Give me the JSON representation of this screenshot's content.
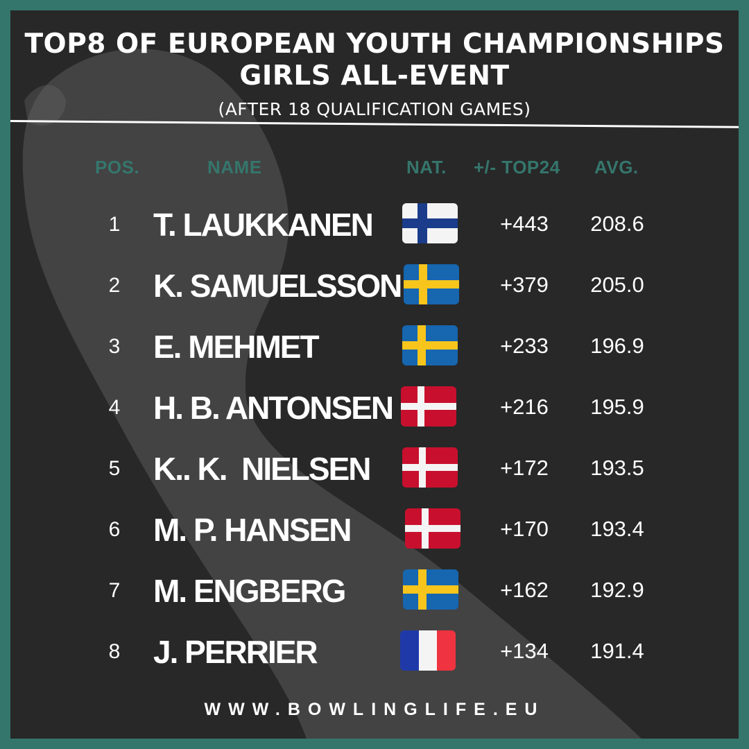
{
  "header": {
    "line1": "TOP8 OF EUROPEAN YOUTH CHAMPIONSHIPS",
    "line2": "GIRLS ALL-EVENT",
    "line3": "(AFTER 18 QUALIFICATION GAMES)"
  },
  "columns": {
    "pos": "POS.",
    "name": "NAME",
    "nat": "NAT.",
    "diff": "+/- TOP24",
    "avg": "AVG."
  },
  "colors": {
    "frame": "#35766c",
    "panel": "#282828",
    "header_text": "#35766c",
    "text": "#ffffff"
  },
  "rows": [
    {
      "pos": "1",
      "name": "T. LAUKKANEN",
      "flag": "finland-flag",
      "diff": "+443",
      "avg": "208.6"
    },
    {
      "pos": "2",
      "name": "K. SAMUELSSON",
      "flag": "sweden-flag",
      "diff": "+379",
      "avg": "205.0"
    },
    {
      "pos": "3",
      "name": "E. MEHMET",
      "flag": "sweden-flag",
      "diff": "+233",
      "avg": "196.9"
    },
    {
      "pos": "4",
      "name": "H. B. ANTONSEN",
      "flag": "denmark-flag",
      "diff": "+216",
      "avg": "195.9"
    },
    {
      "pos": "5",
      "name": "K.. K.  NIELSEN",
      "flag": "denmark-flag",
      "diff": "+172",
      "avg": "193.5"
    },
    {
      "pos": "6",
      "name": "M. P. HANSEN",
      "flag": "denmark-flag",
      "diff": "+170",
      "avg": "193.4"
    },
    {
      "pos": "7",
      "name": "M. ENGBERG",
      "flag": "sweden-flag",
      "diff": "+162",
      "avg": "192.9"
    },
    {
      "pos": "8",
      "name": "J. PERRIER",
      "flag": "france-flag",
      "diff": "+134",
      "avg": "191.4"
    }
  ],
  "footer": {
    "website": "WWW.BOWLINGLIFE.EU"
  }
}
